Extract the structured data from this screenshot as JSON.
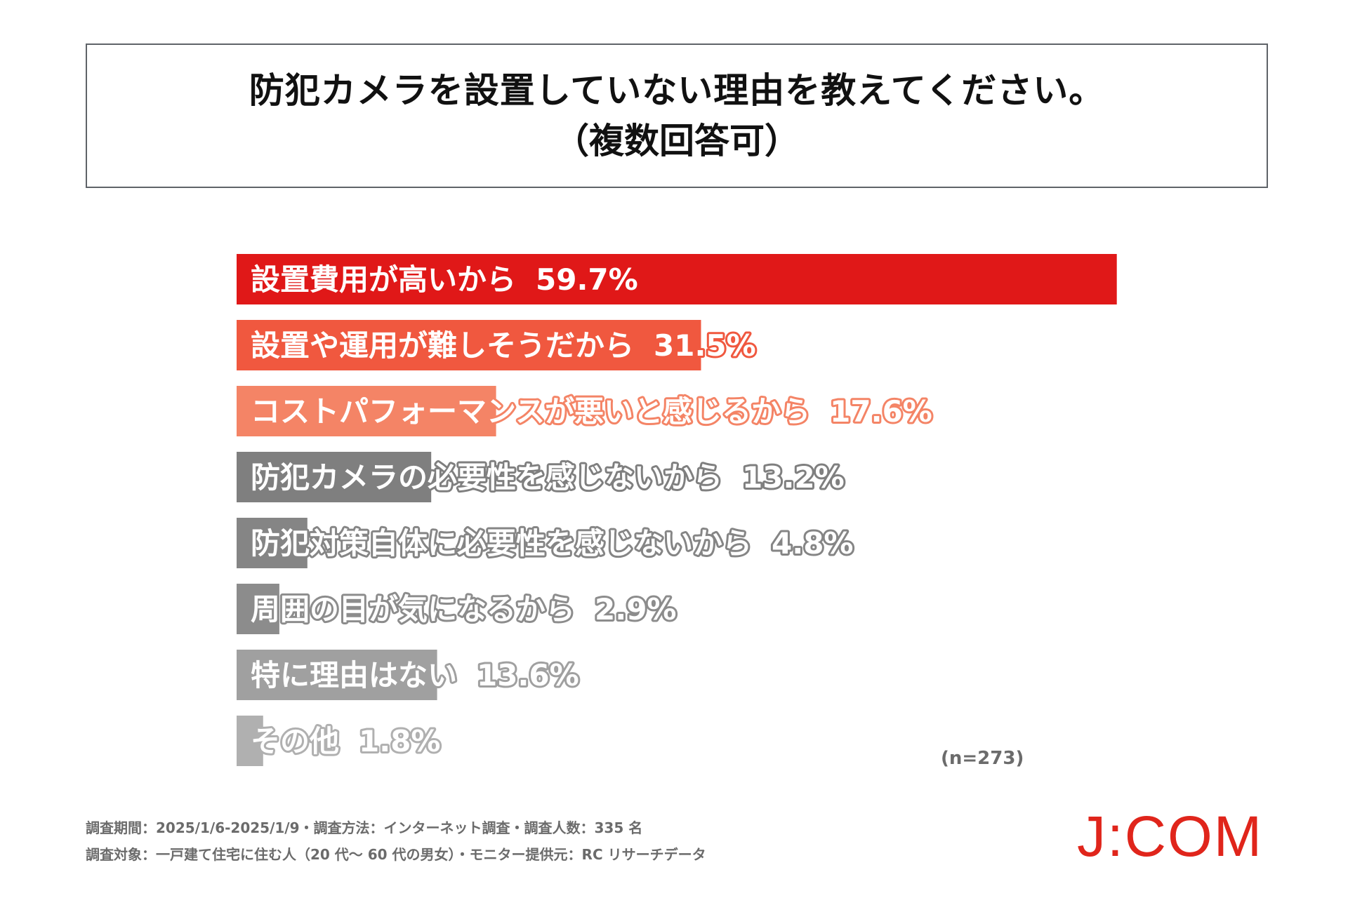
{
  "title": {
    "line1": "防犯カメラを設置していない理由を教えてください。",
    "line2": "（複数回答可）"
  },
  "chart_data": {
    "type": "bar",
    "orientation": "horizontal",
    "title": "防犯カメラを設置していない理由を教えてください。（複数回答可）",
    "unit": "%",
    "xlim": [
      0,
      100
    ],
    "categories": [
      "設置費用が高いから",
      "設置や運用が難しそうだから",
      "コストパフォーマンスが悪いと感じるから",
      "防犯カメラの必要性を感じないから",
      "防犯対策自体に必要性を感じないから",
      "周囲の目が気になるから",
      "特に理由はない",
      "その他"
    ],
    "values": [
      59.7,
      31.5,
      17.6,
      13.2,
      4.8,
      2.9,
      13.6,
      1.8
    ],
    "value_labels": [
      "59.7%",
      "31.5%",
      "17.6%",
      "13.2%",
      "4.8%",
      "2.9%",
      "13.6%",
      "1.8%"
    ],
    "colors": [
      "#e01818",
      "#f0583f",
      "#f48466",
      "#7f7f7f",
      "#858585",
      "#8c8c8c",
      "#a0a0a0",
      "#b0b0b0"
    ],
    "sample_size": "(n=273)"
  },
  "footer": {
    "line1": "調査期間：2025/1/6-2025/1/9・調査方法：インターネット調査・調査人数：335 名",
    "line2": "調査対象：一戸建て住宅に住む人（20 代～ 60 代の男女）・モニター提供元：RC リサーチデータ"
  },
  "logo": {
    "text": "J:COM",
    "color": "#e0251b"
  }
}
